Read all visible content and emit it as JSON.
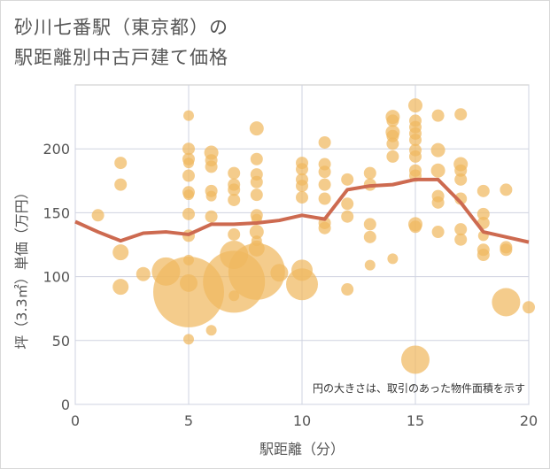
{
  "title_line1": "砂川七番駅（東京都）の",
  "title_line2": "駅距離別中古戸建て価格",
  "note": "円の大きさは、取引のあった物件面積を示す",
  "chart_data": {
    "type": "scatter",
    "xlabel": "駅距離（分）",
    "ylabel": "坪（3.3㎡）単価（万円）",
    "xlim": [
      0,
      20
    ],
    "ylim": [
      0,
      250
    ],
    "x_ticks": [
      0,
      5,
      10,
      15,
      20
    ],
    "y_ticks": [
      0,
      50,
      100,
      150,
      200
    ],
    "grid": true,
    "bubble_color": "#f0b860",
    "line_color": "#cd6a50",
    "bubbles": [
      {
        "x": 1,
        "y": 148,
        "s": 7
      },
      {
        "x": 2,
        "y": 189,
        "s": 7
      },
      {
        "x": 2,
        "y": 172,
        "s": 7
      },
      {
        "x": 2,
        "y": 119,
        "s": 9
      },
      {
        "x": 2,
        "y": 92,
        "s": 9
      },
      {
        "x": 3,
        "y": 102,
        "s": 8
      },
      {
        "x": 4,
        "y": 104,
        "s": 16
      },
      {
        "x": 5,
        "y": 226,
        "s": 6
      },
      {
        "x": 5,
        "y": 200,
        "s": 7
      },
      {
        "x": 5,
        "y": 192,
        "s": 7
      },
      {
        "x": 5,
        "y": 189,
        "s": 6
      },
      {
        "x": 5,
        "y": 179,
        "s": 7
      },
      {
        "x": 5,
        "y": 166,
        "s": 7
      },
      {
        "x": 5,
        "y": 164,
        "s": 6
      },
      {
        "x": 5,
        "y": 149,
        "s": 7
      },
      {
        "x": 5,
        "y": 132,
        "s": 7
      },
      {
        "x": 5,
        "y": 113,
        "s": 6
      },
      {
        "x": 5,
        "y": 95,
        "s": 10
      },
      {
        "x": 5,
        "y": 88,
        "s": 40
      },
      {
        "x": 5,
        "y": 51,
        "s": 6
      },
      {
        "x": 6,
        "y": 197,
        "s": 8
      },
      {
        "x": 6,
        "y": 191,
        "s": 7
      },
      {
        "x": 6,
        "y": 186,
        "s": 7
      },
      {
        "x": 6,
        "y": 167,
        "s": 7
      },
      {
        "x": 6,
        "y": 163,
        "s": 6
      },
      {
        "x": 6,
        "y": 147,
        "s": 7
      },
      {
        "x": 6,
        "y": 58,
        "s": 6
      },
      {
        "x": 7,
        "y": 181,
        "s": 7
      },
      {
        "x": 7,
        "y": 172,
        "s": 7
      },
      {
        "x": 7,
        "y": 168,
        "s": 7
      },
      {
        "x": 7,
        "y": 160,
        "s": 7
      },
      {
        "x": 7,
        "y": 133,
        "s": 7
      },
      {
        "x": 7,
        "y": 117,
        "s": 16
      },
      {
        "x": 7,
        "y": 96,
        "s": 35
      },
      {
        "x": 7,
        "y": 85,
        "s": 6
      },
      {
        "x": 8,
        "y": 216,
        "s": 8
      },
      {
        "x": 8,
        "y": 192,
        "s": 7
      },
      {
        "x": 8,
        "y": 180,
        "s": 7
      },
      {
        "x": 8,
        "y": 174,
        "s": 7
      },
      {
        "x": 8,
        "y": 164,
        "s": 7
      },
      {
        "x": 8,
        "y": 148,
        "s": 7
      },
      {
        "x": 8,
        "y": 145,
        "s": 6
      },
      {
        "x": 8,
        "y": 135,
        "s": 8
      },
      {
        "x": 8,
        "y": 128,
        "s": 6
      },
      {
        "x": 8,
        "y": 122,
        "s": 9
      },
      {
        "x": 8,
        "y": 104,
        "s": 32
      },
      {
        "x": 9,
        "y": 103,
        "s": 10
      },
      {
        "x": 10,
        "y": 189,
        "s": 7
      },
      {
        "x": 10,
        "y": 184,
        "s": 7
      },
      {
        "x": 10,
        "y": 176,
        "s": 7
      },
      {
        "x": 10,
        "y": 171,
        "s": 7
      },
      {
        "x": 10,
        "y": 162,
        "s": 7
      },
      {
        "x": 10,
        "y": 105,
        "s": 12
      },
      {
        "x": 10,
        "y": 94,
        "s": 18
      },
      {
        "x": 11,
        "y": 205,
        "s": 7
      },
      {
        "x": 11,
        "y": 188,
        "s": 7
      },
      {
        "x": 11,
        "y": 182,
        "s": 7
      },
      {
        "x": 11,
        "y": 172,
        "s": 7
      },
      {
        "x": 11,
        "y": 161,
        "s": 7
      },
      {
        "x": 11,
        "y": 142,
        "s": 7
      },
      {
        "x": 11,
        "y": 138,
        "s": 7
      },
      {
        "x": 12,
        "y": 176,
        "s": 7
      },
      {
        "x": 12,
        "y": 157,
        "s": 7
      },
      {
        "x": 12,
        "y": 147,
        "s": 7
      },
      {
        "x": 12,
        "y": 90,
        "s": 7
      },
      {
        "x": 13,
        "y": 181,
        "s": 7
      },
      {
        "x": 13,
        "y": 172,
        "s": 7
      },
      {
        "x": 13,
        "y": 141,
        "s": 7
      },
      {
        "x": 13,
        "y": 131,
        "s": 7
      },
      {
        "x": 13,
        "y": 109,
        "s": 6
      },
      {
        "x": 14,
        "y": 225,
        "s": 8
      },
      {
        "x": 14,
        "y": 222,
        "s": 7
      },
      {
        "x": 14,
        "y": 213,
        "s": 8
      },
      {
        "x": 14,
        "y": 210,
        "s": 7
      },
      {
        "x": 14,
        "y": 204,
        "s": 7
      },
      {
        "x": 14,
        "y": 194,
        "s": 7
      },
      {
        "x": 14,
        "y": 114,
        "s": 6
      },
      {
        "x": 15,
        "y": 234,
        "s": 8
      },
      {
        "x": 15,
        "y": 222,
        "s": 7
      },
      {
        "x": 15,
        "y": 217,
        "s": 7
      },
      {
        "x": 15,
        "y": 212,
        "s": 7
      },
      {
        "x": 15,
        "y": 207,
        "s": 7
      },
      {
        "x": 15,
        "y": 199,
        "s": 7
      },
      {
        "x": 15,
        "y": 194,
        "s": 7
      },
      {
        "x": 15,
        "y": 183,
        "s": 7
      },
      {
        "x": 15,
        "y": 179,
        "s": 7
      },
      {
        "x": 15,
        "y": 141,
        "s": 8
      },
      {
        "x": 15,
        "y": 139,
        "s": 7
      },
      {
        "x": 15,
        "y": 35,
        "s": 16
      },
      {
        "x": 16,
        "y": 226,
        "s": 7
      },
      {
        "x": 16,
        "y": 199,
        "s": 8
      },
      {
        "x": 16,
        "y": 183,
        "s": 8
      },
      {
        "x": 16,
        "y": 163,
        "s": 7
      },
      {
        "x": 16,
        "y": 158,
        "s": 7
      },
      {
        "x": 16,
        "y": 135,
        "s": 7
      },
      {
        "x": 17,
        "y": 227,
        "s": 7
      },
      {
        "x": 17,
        "y": 188,
        "s": 8
      },
      {
        "x": 17,
        "y": 183,
        "s": 7
      },
      {
        "x": 17,
        "y": 176,
        "s": 7
      },
      {
        "x": 17,
        "y": 161,
        "s": 7
      },
      {
        "x": 17,
        "y": 137,
        "s": 7
      },
      {
        "x": 17,
        "y": 129,
        "s": 7
      },
      {
        "x": 18,
        "y": 167,
        "s": 7
      },
      {
        "x": 18,
        "y": 149,
        "s": 7
      },
      {
        "x": 18,
        "y": 142,
        "s": 7
      },
      {
        "x": 18,
        "y": 132,
        "s": 6
      },
      {
        "x": 18,
        "y": 121,
        "s": 7
      },
      {
        "x": 18,
        "y": 117,
        "s": 7
      },
      {
        "x": 19,
        "y": 168,
        "s": 7
      },
      {
        "x": 19,
        "y": 123,
        "s": 7
      },
      {
        "x": 19,
        "y": 121,
        "s": 7
      },
      {
        "x": 19,
        "y": 80,
        "s": 16
      },
      {
        "x": 20,
        "y": 76,
        "s": 7
      }
    ],
    "line": {
      "x": [
        0,
        1,
        2,
        3,
        4,
        5,
        6,
        7,
        8,
        9,
        10,
        11,
        12,
        13,
        14,
        15,
        16,
        17,
        18,
        19,
        20
      ],
      "y": [
        143,
        135,
        128,
        134,
        135,
        133,
        141,
        141,
        142,
        144,
        148,
        145,
        168,
        171,
        172,
        176,
        176,
        158,
        135,
        131,
        127
      ]
    }
  }
}
